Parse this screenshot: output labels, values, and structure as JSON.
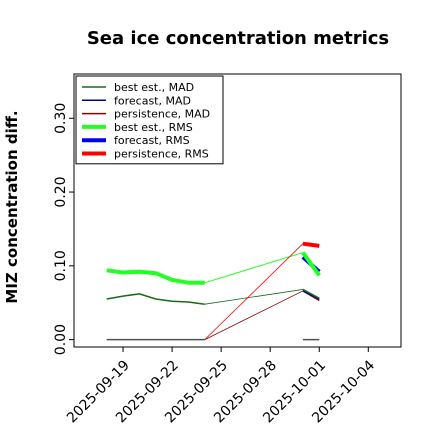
{
  "chart_data": {
    "type": "line",
    "title": "Sea ice concentration metrics",
    "xlabel": "",
    "ylabel": "MIZ concentration diff.",
    "ylim": [
      -0.01,
      0.36
    ],
    "xlim": [
      "2025-09-16",
      "2025-10-06"
    ],
    "yticks": [
      0.0,
      0.1,
      0.2,
      0.3
    ],
    "ytick_labels": [
      "0.00",
      "0.10",
      "0.20",
      "0.30"
    ],
    "xticks": [
      "2025-09-19",
      "2025-09-22",
      "2025-09-25",
      "2025-09-28",
      "2025-10-01",
      "2025-10-04"
    ],
    "xtick_labels": [
      "2025-09-19",
      "2025-09-22",
      "2025-09-25",
      "2025-09-28",
      "2025-10-01",
      "2025-10-04"
    ],
    "highlight_tick": "2025-09-25",
    "highlight_color": "#2e8b2e",
    "grid": false,
    "legend_position": "upper left",
    "legend": [
      {
        "label": "best est., MAD",
        "color": "#1a6b1a",
        "width": 1.5
      },
      {
        "label": "forecast,  MAD",
        "color": "#00008b",
        "width": 1.5
      },
      {
        "label": "persistence, MAD",
        "color": "#8b0000",
        "width": 1.5
      },
      {
        "label": "best est., RMS",
        "color": "#22ff22",
        "width": 4
      },
      {
        "label": "forecast,  RMS",
        "color": "#0000ff",
        "width": 4
      },
      {
        "label": "persistence, RMS",
        "color": "#ff0000",
        "width": 4
      }
    ],
    "series": [
      {
        "name": "best est., MAD",
        "color": "#1a6b1a",
        "width": 1.5,
        "x": [
          "2025-09-18",
          "2025-09-19",
          "2025-09-20",
          "2025-09-21",
          "2025-09-22",
          "2025-09-23",
          "2025-09-24"
        ],
        "values": [
          0.055,
          0.059,
          0.062,
          0.055,
          0.052,
          0.051,
          0.048
        ]
      },
      {
        "name": "persistence, MAD",
        "color": "#505050",
        "width": 1.5,
        "x": [
          "2025-09-18",
          "2025-09-24"
        ],
        "values": [
          0.0,
          0.0
        ]
      },
      {
        "name": "persistence, MAD",
        "color": "#505050",
        "width": 1.5,
        "x": [
          "2025-09-30",
          "2025-10-01"
        ],
        "values": [
          0.0,
          0.0
        ]
      },
      {
        "name": "best est., RMS",
        "color": "#22ff22",
        "width": 4,
        "x": [
          "2025-09-18",
          "2025-09-19",
          "2025-09-20",
          "2025-09-21",
          "2025-09-22",
          "2025-09-23",
          "2025-09-24"
        ],
        "values": [
          0.094,
          0.091,
          0.092,
          0.09,
          0.081,
          0.077,
          0.077
        ]
      },
      {
        "name": "persistence, RMS",
        "color": "#ff0000",
        "width": 4,
        "x": [
          "2025-09-30",
          "2025-10-01"
        ],
        "values": [
          0.13,
          0.127
        ]
      },
      {
        "name": "forecast,  RMS",
        "color": "#0000ff",
        "width": 4,
        "x": [
          "2025-09-30",
          "2025-10-01"
        ],
        "values": [
          0.112,
          0.092
        ]
      },
      {
        "name": "best est., RMS",
        "color": "#22ff22",
        "width": 4,
        "x": [
          "2025-09-30",
          "2025-10-01"
        ],
        "values": [
          0.118,
          0.087
        ]
      },
      {
        "name": "persistence, MAD",
        "color": "#8b0000",
        "width": 1.5,
        "x": [
          "2025-09-30",
          "2025-10-01"
        ],
        "values": [
          0.066,
          0.053
        ]
      },
      {
        "name": "forecast,  MAD",
        "color": "#00008b",
        "width": 1.5,
        "x": [
          "2025-09-30",
          "2025-10-01"
        ],
        "values": [
          0.066,
          0.055
        ]
      },
      {
        "name": "best est., MAD",
        "color": "#1a6b1a",
        "width": 1.5,
        "x": [
          "2025-09-30",
          "2025-10-01"
        ],
        "values": [
          0.068,
          0.056
        ]
      }
    ],
    "connectors": [
      {
        "color": "#22ff22",
        "width": 1,
        "x": [
          "2025-09-24",
          "2025-09-30"
        ],
        "values": [
          0.077,
          0.118
        ]
      },
      {
        "color": "#1a6b1a",
        "width": 0.8,
        "x": [
          "2025-09-24",
          "2025-09-30"
        ],
        "values": [
          0.048,
          0.068
        ]
      },
      {
        "color": "#ff0000",
        "width": 0.8,
        "x": [
          "2025-09-24",
          "2025-09-30"
        ],
        "values": [
          0.0,
          0.13
        ]
      },
      {
        "color": "#8b0000",
        "width": 0.8,
        "x": [
          "2025-09-24",
          "2025-09-30"
        ],
        "values": [
          0.0,
          0.066
        ]
      }
    ]
  }
}
